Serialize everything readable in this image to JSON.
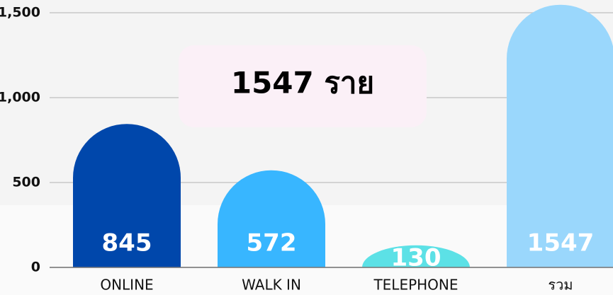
{
  "chart_data": {
    "type": "bar",
    "annotation": "1547 ราย",
    "categories": [
      "ONLINE",
      "WALK IN",
      "TELEPHONE",
      "รวม"
    ],
    "values": [
      845,
      572,
      130,
      1547
    ],
    "colors": [
      "#0047ab",
      "#38b6ff",
      "#5ce1e6",
      "#9ad7fc"
    ],
    "ylim": [
      0,
      1575
    ],
    "yticks": [
      0,
      500,
      {
        "value": 1000,
        "label": "1,000"
      },
      {
        "value": 1500,
        "label": "1,500"
      }
    ],
    "grid": true
  }
}
